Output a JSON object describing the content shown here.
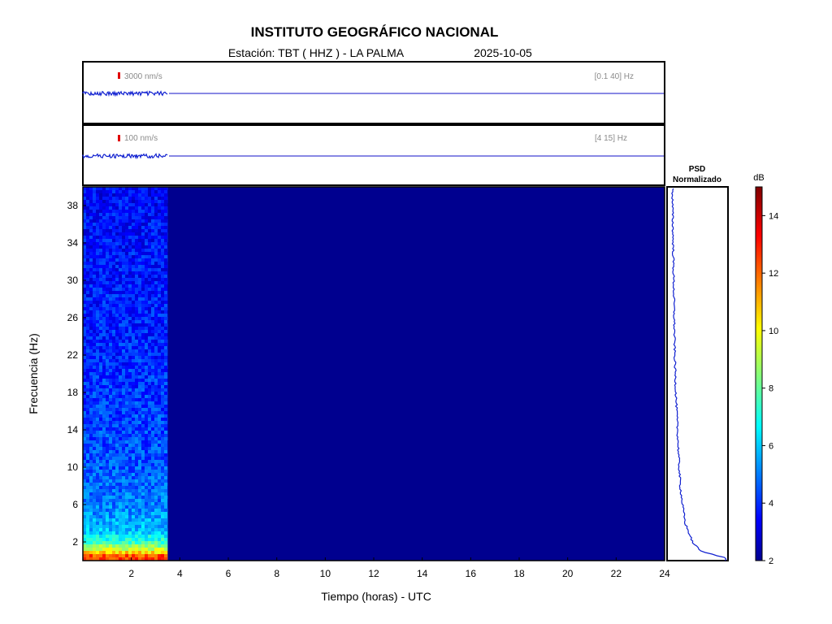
{
  "header": {
    "title": "INSTITUTO GEOGRÁFICO NACIONAL",
    "station_label": "Estación:  TBT ( HHZ ) - LA PALMA",
    "date": "2025-10-05"
  },
  "traces": [
    {
      "scale_label": "3000 nm/s",
      "band_label": "[0.1 40] Hz"
    },
    {
      "scale_label": "100 nm/s",
      "band_label": "[4 15] Hz"
    }
  ],
  "psd": {
    "title_line1": "PSD",
    "title_line2": "Normalizado"
  },
  "colorbar": {
    "unit": "dB",
    "ticks": [
      2,
      4,
      6,
      8,
      10,
      12,
      14
    ],
    "range": [
      2,
      15
    ]
  },
  "chart_data": {
    "type": "heatmap",
    "xlabel": "Tiempo (horas) - UTC",
    "ylabel": "Frecuencia  (Hz)",
    "xlim": [
      0,
      24
    ],
    "ylim": [
      0,
      40
    ],
    "xticks": [
      2,
      4,
      6,
      8,
      10,
      12,
      14,
      16,
      18,
      20,
      22,
      24
    ],
    "yticks": [
      2,
      6,
      10,
      14,
      18,
      22,
      26,
      30,
      34,
      38
    ],
    "data_end_hour": 3.5,
    "background_db": 2,
    "spectrum_profile": {
      "freq_hz": [
        0.5,
        1,
        2,
        3,
        4,
        6,
        8,
        10,
        14,
        18,
        22,
        26,
        30,
        34,
        38,
        40
      ],
      "db": [
        12.5,
        10,
        7.5,
        6.3,
        5.8,
        5.2,
        4.9,
        4.7,
        4.5,
        4.3,
        4.1,
        4.0,
        3.9,
        3.8,
        3.7,
        3.6
      ]
    },
    "psd_normalized": {
      "freq_hz": [
        0.3,
        1,
        2,
        4,
        6,
        8,
        10,
        14,
        18,
        22,
        26,
        30,
        34,
        38,
        40
      ],
      "value": [
        1.0,
        0.55,
        0.4,
        0.27,
        0.22,
        0.18,
        0.16,
        0.13,
        0.1,
        0.08,
        0.07,
        0.06,
        0.05,
        0.04,
        0.04
      ]
    }
  }
}
